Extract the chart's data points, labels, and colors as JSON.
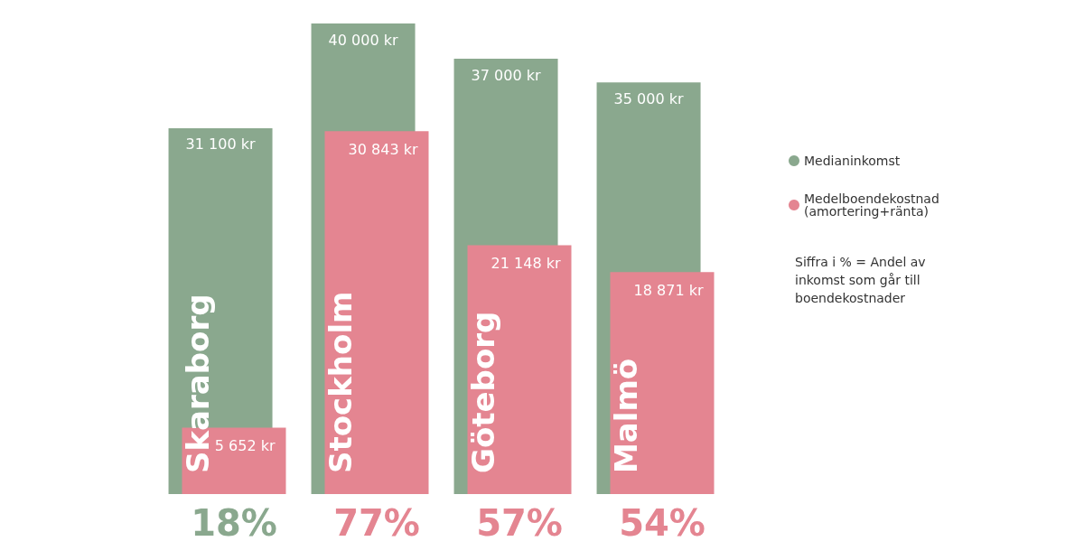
{
  "chart_data": {
    "type": "bar",
    "categories": [
      "Skaraborg",
      "Stockholm",
      "Göteborg",
      "Malmö"
    ],
    "series": [
      {
        "name": "Medianinkomst",
        "color": "#8aa88e",
        "values": [
          31100,
          40000,
          37000,
          35000
        ],
        "value_labels": [
          "31 100 kr",
          "40 000 kr",
          "37 000 kr",
          "35 000 kr"
        ]
      },
      {
        "name": "Medelboendekostnad\n(amortering+ränta)",
        "color": "#e48591",
        "values": [
          5652,
          30843,
          21148,
          18871
        ],
        "value_labels": [
          "5 652 kr",
          "30 843 kr",
          "21 148 kr",
          "18 871 kr"
        ]
      }
    ],
    "annotations": [
      "18%",
      "77%",
      "57%",
      "54%",
      "Siffra i % = Andel av\ninkomst som går till\nboendekostnader"
    ],
    "legend": "right"
  }
}
